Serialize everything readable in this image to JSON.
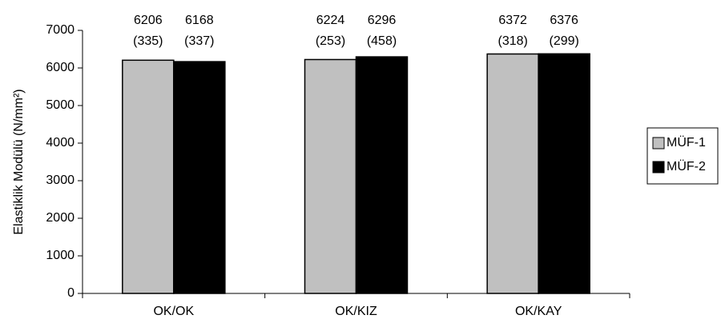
{
  "chart_data": {
    "type": "bar",
    "title": "",
    "xlabel": "",
    "ylabel": "Elastiklik Modülü (N/mm²)",
    "ylim": [
      0,
      7000
    ],
    "yticks": [
      0,
      1000,
      2000,
      3000,
      4000,
      5000,
      6000,
      7000
    ],
    "grid": false,
    "legend_position": "right",
    "categories": [
      "OK/OK",
      "OK/KIZ",
      "OK/KAY"
    ],
    "series": [
      {
        "name": "MÜF-1",
        "color": "#c0c0c0",
        "values": [
          6206,
          6224,
          6372
        ],
        "sd_labels": [
          "(335)",
          "(253)",
          "(318)"
        ]
      },
      {
        "name": "MÜF-2",
        "color": "#000000",
        "values": [
          6168,
          6296,
          6376
        ],
        "sd_labels": [
          "(337)",
          "(458)",
          "(299)"
        ]
      }
    ]
  }
}
